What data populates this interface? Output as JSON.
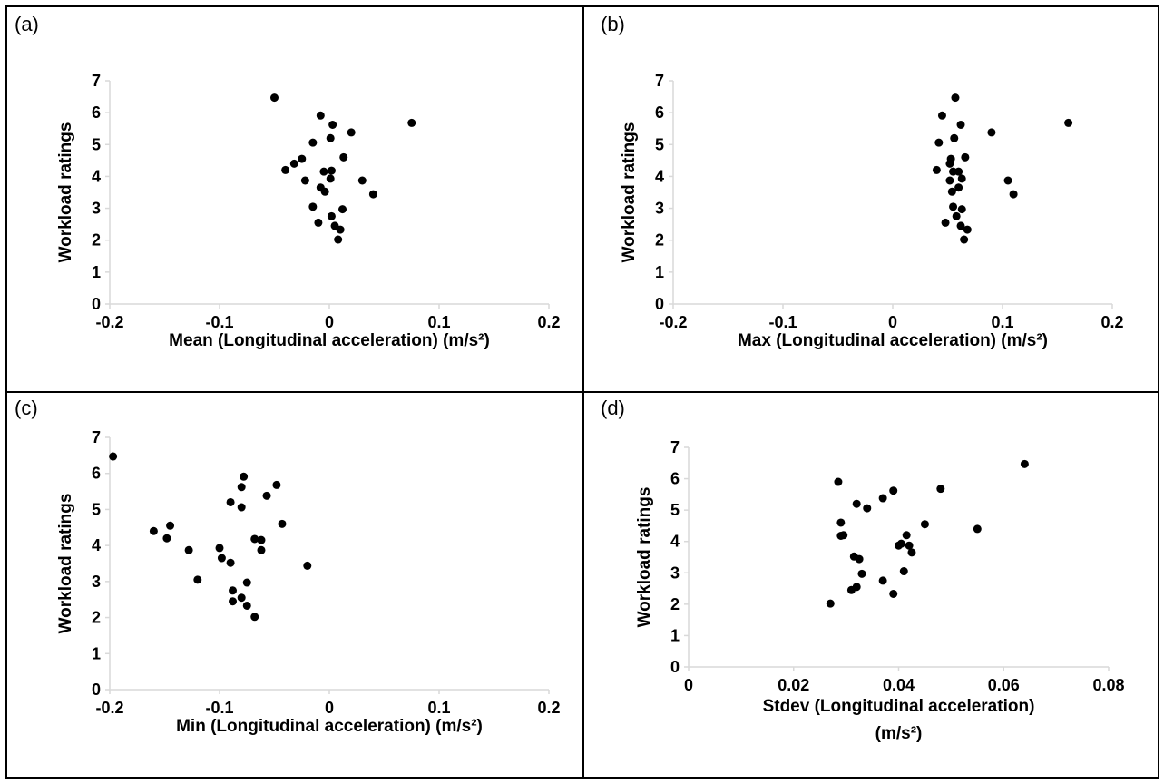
{
  "colors": {
    "marker": "#000000",
    "axis": "#d9d9d9",
    "text": "#000000"
  },
  "chart_data": [
    {
      "type": "scatter",
      "panel_label": "(a)",
      "xlabel": [
        "Mean (Longitudinal acceleration) (m/s²)"
      ],
      "ylabel": "Workload ratings",
      "xlim": [
        -0.2,
        0.2
      ],
      "ylim": [
        0,
        7
      ],
      "xticks": [
        -0.2,
        -0.1,
        0,
        0.1,
        0.2
      ],
      "xtick_labels": [
        "-0.2",
        "-0.1",
        "0",
        "0.1",
        "0.2"
      ],
      "yticks": [
        0,
        1,
        2,
        3,
        4,
        5,
        6,
        7
      ],
      "ytick_labels": [
        "0",
        "1",
        "2",
        "3",
        "4",
        "5",
        "6",
        "7"
      ],
      "grid": false,
      "points": [
        [
          -0.05,
          6.47
        ],
        [
          -0.008,
          5.91
        ],
        [
          0.003,
          5.62
        ],
        [
          0.075,
          5.68
        ],
        [
          0.02,
          5.38
        ],
        [
          0.001,
          5.2
        ],
        [
          -0.015,
          5.06
        ],
        [
          0.013,
          4.6
        ],
        [
          -0.025,
          4.55
        ],
        [
          -0.032,
          4.4
        ],
        [
          -0.04,
          4.2
        ],
        [
          -0.005,
          4.15
        ],
        [
          0.002,
          4.18
        ],
        [
          -0.022,
          3.87
        ],
        [
          0.001,
          3.93
        ],
        [
          0.03,
          3.87
        ],
        [
          -0.008,
          3.65
        ],
        [
          -0.004,
          3.52
        ],
        [
          0.04,
          3.44
        ],
        [
          -0.015,
          3.05
        ],
        [
          0.012,
          2.97
        ],
        [
          0.002,
          2.75
        ],
        [
          -0.01,
          2.55
        ],
        [
          0.005,
          2.45
        ],
        [
          0.01,
          2.33
        ],
        [
          0.008,
          2.02
        ]
      ]
    },
    {
      "type": "scatter",
      "panel_label": "(b)",
      "xlabel": [
        "Max (Longitudinal acceleration) (m/s²)"
      ],
      "ylabel": "Workload ratings",
      "xlim": [
        -0.2,
        0.2
      ],
      "ylim": [
        0,
        7
      ],
      "xticks": [
        -0.2,
        -0.1,
        0,
        0.1,
        0.2
      ],
      "xtick_labels": [
        "-0.2",
        "-0.1",
        "0",
        "0.1",
        "0.2"
      ],
      "yticks": [
        0,
        1,
        2,
        3,
        4,
        5,
        6,
        7
      ],
      "ytick_labels": [
        "0",
        "1",
        "2",
        "3",
        "4",
        "5",
        "6",
        "7"
      ],
      "grid": false,
      "points": [
        [
          0.057,
          6.47
        ],
        [
          0.045,
          5.91
        ],
        [
          0.062,
          5.62
        ],
        [
          0.16,
          5.68
        ],
        [
          0.09,
          5.38
        ],
        [
          0.056,
          5.2
        ],
        [
          0.042,
          5.06
        ],
        [
          0.066,
          4.6
        ],
        [
          0.053,
          4.55
        ],
        [
          0.052,
          4.4
        ],
        [
          0.04,
          4.2
        ],
        [
          0.055,
          4.15
        ],
        [
          0.06,
          4.15
        ],
        [
          0.052,
          3.87
        ],
        [
          0.063,
          3.93
        ],
        [
          0.105,
          3.87
        ],
        [
          0.06,
          3.65
        ],
        [
          0.054,
          3.52
        ],
        [
          0.11,
          3.44
        ],
        [
          0.055,
          3.05
        ],
        [
          0.063,
          2.97
        ],
        [
          0.058,
          2.75
        ],
        [
          0.048,
          2.55
        ],
        [
          0.062,
          2.45
        ],
        [
          0.068,
          2.33
        ],
        [
          0.065,
          2.02
        ]
      ]
    },
    {
      "type": "scatter",
      "panel_label": "(c)",
      "xlabel": [
        "Min (Longitudinal acceleration) (m/s²)"
      ],
      "ylabel": "Workload ratings",
      "xlim": [
        -0.2,
        0.2
      ],
      "ylim": [
        0,
        7
      ],
      "xticks": [
        -0.2,
        -0.1,
        0,
        0.1,
        0.2
      ],
      "xtick_labels": [
        "-0.2",
        "-0.1",
        "0",
        "0.1",
        "0.2"
      ],
      "yticks": [
        0,
        1,
        2,
        3,
        4,
        5,
        6,
        7
      ],
      "ytick_labels": [
        "0",
        "1",
        "2",
        "3",
        "4",
        "5",
        "6",
        "7"
      ],
      "grid": false,
      "points": [
        [
          -0.197,
          6.47
        ],
        [
          -0.078,
          5.91
        ],
        [
          -0.08,
          5.62
        ],
        [
          -0.048,
          5.68
        ],
        [
          -0.057,
          5.38
        ],
        [
          -0.09,
          5.2
        ],
        [
          -0.08,
          5.06
        ],
        [
          -0.043,
          4.6
        ],
        [
          -0.145,
          4.55
        ],
        [
          -0.16,
          4.4
        ],
        [
          -0.148,
          4.2
        ],
        [
          -0.068,
          4.18
        ],
        [
          -0.062,
          4.15
        ],
        [
          -0.128,
          3.87
        ],
        [
          -0.1,
          3.93
        ],
        [
          -0.062,
          3.87
        ],
        [
          -0.098,
          3.65
        ],
        [
          -0.09,
          3.52
        ],
        [
          -0.02,
          3.44
        ],
        [
          -0.12,
          3.05
        ],
        [
          -0.075,
          2.97
        ],
        [
          -0.088,
          2.75
        ],
        [
          -0.08,
          2.55
        ],
        [
          -0.088,
          2.45
        ],
        [
          -0.075,
          2.33
        ],
        [
          -0.068,
          2.02
        ]
      ]
    },
    {
      "type": "scatter",
      "panel_label": "(d)",
      "xlabel": [
        "Stdev (Longitudinal acceleration)",
        "(m/s²)"
      ],
      "ylabel": "Workload ratings",
      "xlim": [
        0,
        0.08
      ],
      "ylim": [
        0,
        7
      ],
      "xticks": [
        0,
        0.02,
        0.04,
        0.06,
        0.08
      ],
      "xtick_labels": [
        "0",
        "0.02",
        "0.04",
        "0.06",
        "0.08"
      ],
      "yticks": [
        0,
        1,
        2,
        3,
        4,
        5,
        6,
        7
      ],
      "ytick_labels": [
        "0",
        "1",
        "2",
        "3",
        "4",
        "5",
        "6",
        "7"
      ],
      "grid": false,
      "points": [
        [
          0.064,
          6.47
        ],
        [
          0.0285,
          5.9
        ],
        [
          0.039,
          5.62
        ],
        [
          0.048,
          5.68
        ],
        [
          0.037,
          5.38
        ],
        [
          0.032,
          5.2
        ],
        [
          0.034,
          5.06
        ],
        [
          0.029,
          4.6
        ],
        [
          0.045,
          4.55
        ],
        [
          0.055,
          4.4
        ],
        [
          0.029,
          4.18
        ],
        [
          0.0295,
          4.2
        ],
        [
          0.0415,
          4.2
        ],
        [
          0.04,
          3.87
        ],
        [
          0.0405,
          3.93
        ],
        [
          0.042,
          3.87
        ],
        [
          0.0425,
          3.65
        ],
        [
          0.0315,
          3.52
        ],
        [
          0.0325,
          3.44
        ],
        [
          0.041,
          3.05
        ],
        [
          0.033,
          2.97
        ],
        [
          0.037,
          2.75
        ],
        [
          0.032,
          2.55
        ],
        [
          0.031,
          2.45
        ],
        [
          0.039,
          2.33
        ],
        [
          0.027,
          2.02
        ]
      ]
    }
  ]
}
